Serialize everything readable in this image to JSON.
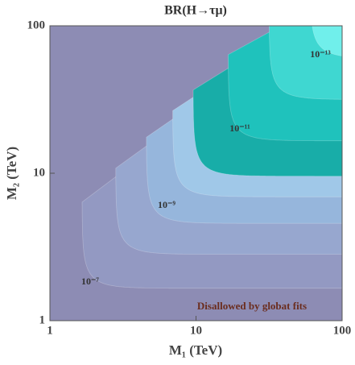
{
  "chart_data": {
    "type": "contour",
    "title": "BR(H→τμ)",
    "x_label": "M₁ (TeV)",
    "y_label": "M₂ (TeV)",
    "xscale": "log",
    "yscale": "log",
    "xlim": [
      1,
      100
    ],
    "ylim": [
      1,
      100
    ],
    "xticks": [
      1,
      10,
      100
    ],
    "yticks": [
      1,
      10,
      100
    ],
    "region_colors": [
      "#8d8cb4",
      "#9399c2",
      "#97a7cf",
      "#96b6dc",
      "#a0c8e8",
      "#18ada8",
      "#1fc2bc",
      "#3fd7d1",
      "#70efeb"
    ],
    "contour_labels": [
      {
        "value": 1e-07,
        "label": "10⁻⁷"
      },
      {
        "value": 1e-09,
        "label": "10⁻⁹"
      },
      {
        "value": 1e-11,
        "label": "10⁻¹¹"
      },
      {
        "value": 1e-13,
        "label": "10⁻¹³"
      }
    ],
    "annotation": "Disallowed by globat fits"
  }
}
